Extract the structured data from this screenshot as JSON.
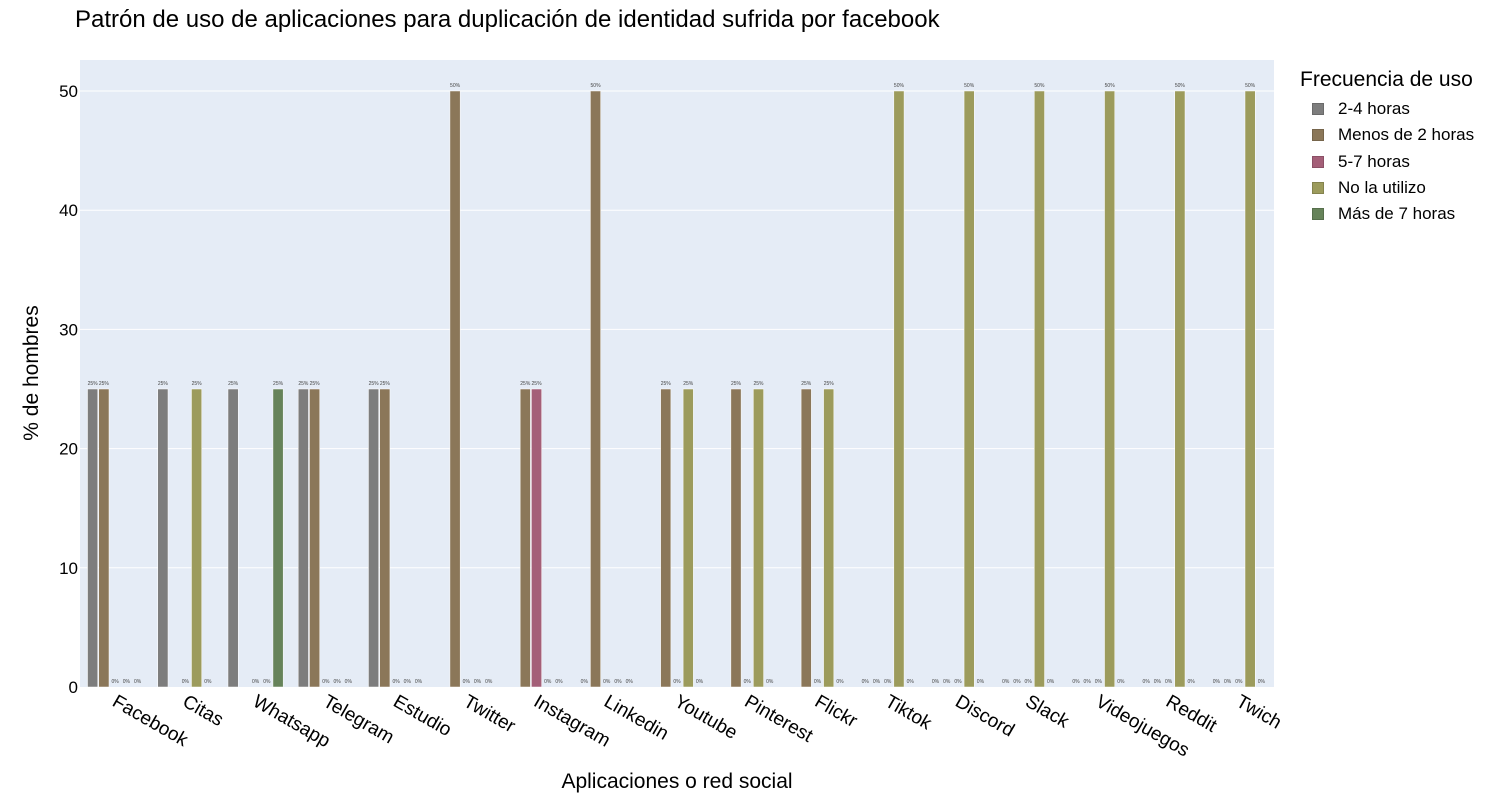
{
  "chart_data": {
    "type": "bar",
    "title": "Patrón de uso de aplicaciones para duplicación de identidad sufrida por facebook",
    "xlabel": "Aplicaciones o red social",
    "ylabel": "% de hombres",
    "ylim": [
      0,
      52.6
    ],
    "yticks": [
      0,
      10,
      20,
      30,
      40,
      50
    ],
    "grid": true,
    "legend_title": "Frecuencia de uso",
    "legend_position": "right",
    "label_suffix": "%",
    "categories": [
      "Facebook",
      "Citas",
      "Whatsapp",
      "Telegram",
      "Estudio",
      "Twitter",
      "Instagram",
      "Linkedin",
      "Youtube",
      "Pinterest",
      "Flickr",
      "Tiktok",
      "Discord",
      "Slack",
      "Videojuegos",
      "Reddit",
      "Twich"
    ],
    "series": [
      {
        "name": "2-4 horas",
        "color": "#7d7d7d",
        "values": [
          25,
          25,
          25,
          25,
          25,
          null,
          null,
          0,
          null,
          null,
          null,
          0,
          0,
          0,
          0,
          0,
          0
        ]
      },
      {
        "name": "Menos de 2 horas",
        "color": "#8b7759",
        "values": [
          25,
          null,
          null,
          25,
          25,
          50,
          25,
          50,
          25,
          25,
          25,
          0,
          0,
          0,
          0,
          0,
          0
        ]
      },
      {
        "name": "5-7 horas",
        "color": "#a45f78",
        "values": [
          0,
          0,
          0,
          0,
          0,
          0,
          25,
          0,
          0,
          0,
          0,
          0,
          0,
          0,
          0,
          0,
          0
        ]
      },
      {
        "name": "No la utilizo",
        "color": "#9c9b5c",
        "values": [
          0,
          25,
          0,
          0,
          0,
          0,
          0,
          0,
          25,
          25,
          25,
          50,
          50,
          50,
          50,
          50,
          50
        ]
      },
      {
        "name": "Más de 7 horas",
        "color": "#66835a",
        "values": [
          0,
          0,
          25,
          0,
          0,
          0,
          0,
          0,
          0,
          0,
          0,
          0,
          0,
          0,
          0,
          0,
          0
        ]
      }
    ]
  }
}
